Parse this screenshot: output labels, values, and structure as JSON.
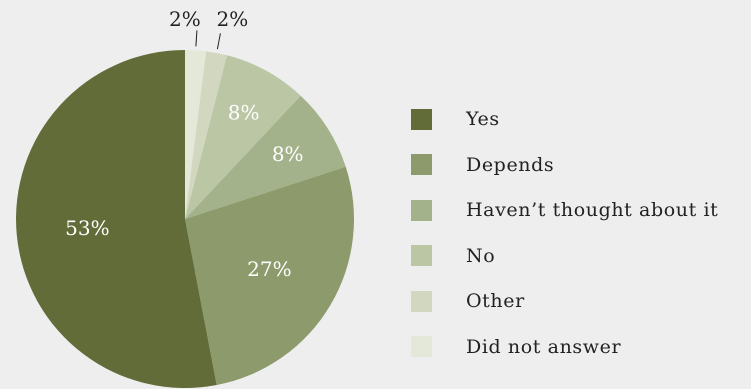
{
  "chart_data": {
    "type": "pie",
    "title": "",
    "slices": [
      {
        "label": "Did not answer",
        "value": 2,
        "display": "2%",
        "color": "#e4e8d8"
      },
      {
        "label": "Other",
        "value": 2,
        "display": "2%",
        "color": "#d2d8c0"
      },
      {
        "label": "No",
        "value": 8,
        "display": "8%",
        "color": "#bbc6a5"
      },
      {
        "label": "Haven’t thought about it",
        "value": 8,
        "display": "8%",
        "color": "#a4b28b"
      },
      {
        "label": "Depends",
        "value": 27,
        "display": "27%",
        "color": "#8d9b6c"
      },
      {
        "label": "Yes",
        "value": 53,
        "display": "53%",
        "color": "#616c39"
      }
    ],
    "start_angle": "top (12 o'clock), clockwise",
    "legend": {
      "placement": "right",
      "items": [
        {
          "label": "Yes",
          "color": "#616c39"
        },
        {
          "label": "Depends",
          "color": "#8d9b6c"
        },
        {
          "label": "Haven’t thought about it",
          "color": "#a4b28b"
        },
        {
          "label": "No",
          "color": "#bbc6a5"
        },
        {
          "label": "Other",
          "color": "#d2d8c0"
        },
        {
          "label": "Did not answer",
          "color": "#e4e8d8"
        }
      ]
    }
  },
  "colors": {
    "background": "#eeeeee",
    "text": "#222222",
    "inner_label": "#ffffff"
  }
}
